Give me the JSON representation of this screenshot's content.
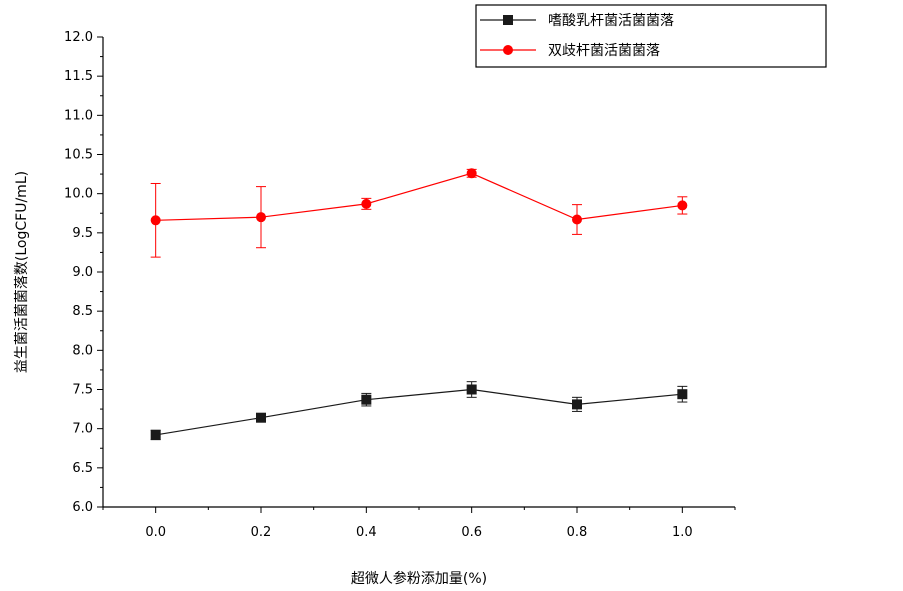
{
  "chart_data": {
    "type": "line",
    "xlabel": "超微人参粉添加量(%)",
    "ylabel": "益生菌活菌菌落数(LogCFU/mL)",
    "xlim": [
      -0.1,
      1.1
    ],
    "ylim": [
      6.0,
      12.0
    ],
    "x": [
      0.0,
      0.2,
      0.4,
      0.6,
      0.8,
      1.0
    ],
    "x_tick_labels": [
      "0.0",
      "0.2",
      "0.4",
      "0.6",
      "0.8",
      "1.0"
    ],
    "y_ticks": [
      6.0,
      6.5,
      7.0,
      7.5,
      8.0,
      8.5,
      9.0,
      9.5,
      10.0,
      10.5,
      11.0,
      11.5,
      12.0
    ],
    "y_tick_labels": [
      "6.0",
      "6.5",
      "7.0",
      "7.5",
      "8.0",
      "8.5",
      "9.0",
      "9.5",
      "10.0",
      "10.5",
      "11.0",
      "11.5",
      "12.0"
    ],
    "grid": false,
    "legend_position": "top-right",
    "series": [
      {
        "name": "嗜酸乳杆菌活菌菌落",
        "color": "#1a1a1a",
        "marker": "square",
        "values": [
          6.92,
          7.14,
          7.37,
          7.5,
          7.31,
          7.44
        ],
        "errors": [
          0.06,
          0.04,
          0.08,
          0.1,
          0.09,
          0.1
        ]
      },
      {
        "name": "双歧杆菌活菌菌落",
        "color": "#ff0000",
        "marker": "circle",
        "values": [
          9.66,
          9.7,
          9.87,
          10.26,
          9.67,
          9.85
        ],
        "errors": [
          0.47,
          0.39,
          0.07,
          0.05,
          0.19,
          0.11
        ]
      }
    ]
  }
}
